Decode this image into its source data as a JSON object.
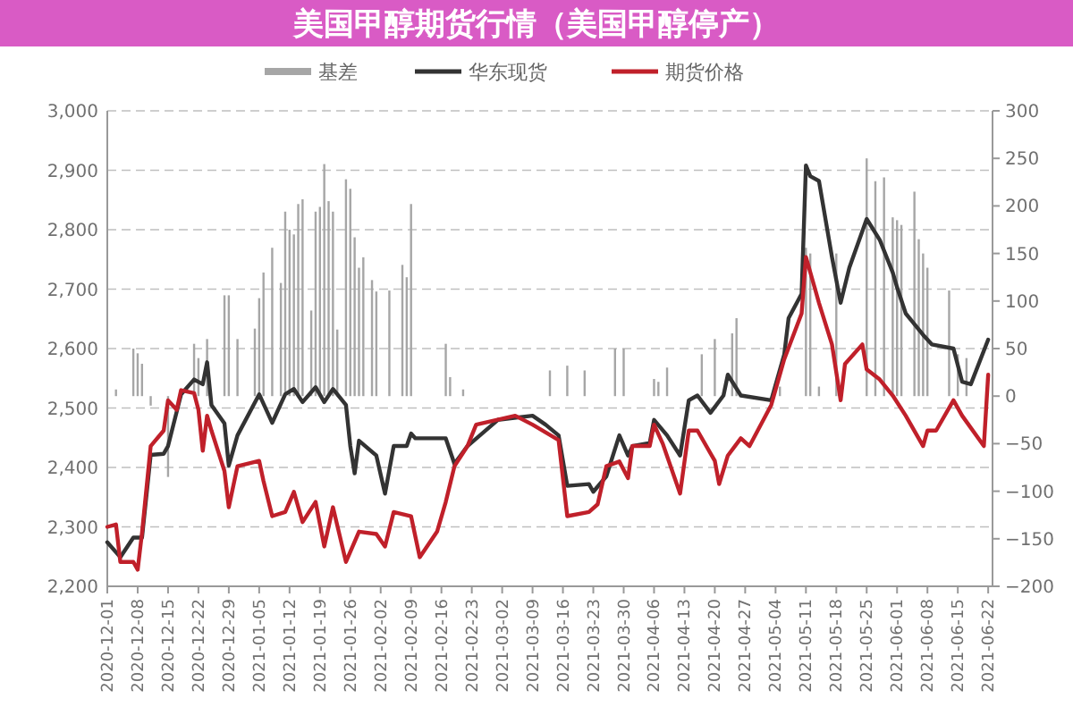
{
  "chart_data": {
    "type": "line",
    "title": "美国甲醇期货行情（美国甲醇停产）",
    "xlim": [
      "2020-12-01",
      "2021-06-23"
    ],
    "xticks": [
      {
        "value": "2020-12-01",
        "label": "2020-12-01"
      },
      {
        "value": "2020-12-08",
        "label": "2020-12-08"
      },
      {
        "value": "2020-12-15",
        "label": "2020-12-15"
      },
      {
        "value": "2020-12-22",
        "label": "2020-12-22"
      },
      {
        "value": "2020-12-29",
        "label": "2020-12-29"
      },
      {
        "value": "2021-01-05",
        "label": "2021-01-05"
      },
      {
        "value": "2021-01-12",
        "label": "2021-01-12"
      },
      {
        "value": "2021-01-19",
        "label": "2021-01-19"
      },
      {
        "value": "2021-01-26",
        "label": "2021-01-26"
      },
      {
        "value": "2021-02-02",
        "label": "2021-02-02"
      },
      {
        "value": "2021-02-09",
        "label": "2021-02-09"
      },
      {
        "value": "2021-02-16",
        "label": "2021-02-16"
      },
      {
        "value": "2021-02-23",
        "label": "2021-02-23"
      },
      {
        "value": "2021-03-02",
        "label": "2021-03-02"
      },
      {
        "value": "2021-03-09",
        "label": "2021-03-09"
      },
      {
        "value": "2021-03-16",
        "label": "2021-03-16"
      },
      {
        "value": "2021-03-23",
        "label": "2021-03-23"
      },
      {
        "value": "2021-03-30",
        "label": "2021-03-30"
      },
      {
        "value": "2021-04-06",
        "label": "2021-04-06"
      },
      {
        "value": "2021-04-13",
        "label": "2021-04-13"
      },
      {
        "value": "2021-04-20",
        "label": "2021-04-20"
      },
      {
        "value": "2021-04-27",
        "label": "2021-04-27"
      },
      {
        "value": "2021-05-04",
        "label": "2021-05-04"
      },
      {
        "value": "2021-05-11",
        "label": "2021-05-11"
      },
      {
        "value": "2021-05-18",
        "label": "2021-05-18"
      },
      {
        "value": "2021-05-25",
        "label": "2021-05-25"
      },
      {
        "value": "2021-06-01",
        "label": "2021-06-01"
      },
      {
        "value": "2021-06-08",
        "label": "2021-06-08"
      },
      {
        "value": "2021-06-15",
        "label": "2021-06-15"
      },
      {
        "value": "2021-06-22",
        "label": "2021-06-22"
      }
    ],
    "ylim": [
      2200,
      3000
    ],
    "yticks": [
      {
        "value": 2200,
        "label": "2,200"
      },
      {
        "value": 2300,
        "label": "2,300"
      },
      {
        "value": 2400,
        "label": "2,400"
      },
      {
        "value": 2500,
        "label": "2,500"
      },
      {
        "value": 2600,
        "label": "2,600"
      },
      {
        "value": 2700,
        "label": "2,700"
      },
      {
        "value": 2800,
        "label": "2,800"
      },
      {
        "value": 2900,
        "label": "2,900"
      },
      {
        "value": 3000,
        "label": "3,000"
      }
    ],
    "y2lim": [
      -200,
      300
    ],
    "y2ticks": [
      {
        "value": -200,
        "label": "−200"
      },
      {
        "value": -150,
        "label": "−150"
      },
      {
        "value": -100,
        "label": "−100"
      },
      {
        "value": -50,
        "label": "−50"
      },
      0,
      50,
      100,
      150,
      200,
      250,
      300
    ],
    "grid": "y",
    "legend": "top",
    "series": [
      {
        "name": "基差",
        "type": "bar",
        "axis": "y2",
        "color": "#a6a6a6",
        "x": [
          "2020-12-03",
          "2020-12-07",
          "2020-12-08",
          "2020-12-09",
          "2020-12-11",
          "2020-12-15",
          "2020-12-21",
          "2020-12-22",
          "2020-12-24",
          "2020-12-28",
          "2020-12-29",
          "2020-12-31",
          "2021-01-04",
          "2021-01-05",
          "2021-01-06",
          "2021-01-08",
          "2021-01-10",
          "2021-01-11",
          "2021-01-12",
          "2021-01-13",
          "2021-01-14",
          "2021-01-15",
          "2021-01-17",
          "2021-01-18",
          "2021-01-19",
          "2021-01-20",
          "2021-01-21",
          "2021-01-22",
          "2021-01-23",
          "2021-01-25",
          "2021-01-26",
          "2021-01-27",
          "2021-01-28",
          "2021-01-29",
          "2021-01-31",
          "2021-02-01",
          "2021-02-04",
          "2021-02-07",
          "2021-02-08",
          "2021-02-09",
          "2021-02-17",
          "2021-02-18",
          "2021-02-21",
          "2021-03-13",
          "2021-03-17",
          "2021-03-21",
          "2021-03-28",
          "2021-03-30",
          "2021-04-06",
          "2021-04-07",
          "2021-04-09",
          "2021-04-17",
          "2021-04-20",
          "2021-04-24",
          "2021-04-25",
          "2021-05-05",
          "2021-05-11",
          "2021-05-12",
          "2021-05-14",
          "2021-05-18",
          "2021-05-25",
          "2021-05-27",
          "2021-05-29",
          "2021-05-31",
          "2021-06-01",
          "2021-06-02",
          "2021-06-05",
          "2021-06-06",
          "2021-06-07",
          "2021-06-08",
          "2021-06-13",
          "2021-06-15",
          "2021-06-17"
        ],
        "values": [
          7,
          50,
          45,
          34,
          -10,
          -85,
          55,
          40,
          60,
          106,
          106,
          60,
          71,
          103,
          130,
          156,
          119,
          194,
          175,
          170,
          202,
          207,
          90,
          194,
          199,
          244,
          205,
          194,
          70,
          228,
          218,
          167,
          135,
          146,
          122,
          110,
          111,
          138,
          125,
          202,
          55,
          20,
          7,
          27,
          32,
          27,
          50,
          50,
          18,
          15,
          30,
          44,
          60,
          66,
          82,
          10,
          156,
          150,
          10,
          150,
          250,
          226,
          230,
          188,
          185,
          180,
          215,
          165,
          150,
          135,
          111,
          44,
          40
        ]
      },
      {
        "name": "华东现货",
        "type": "line",
        "color": "#333333",
        "x": [
          "2020-12-01",
          "2020-12-04",
          "2020-12-07",
          "2020-12-09",
          "2020-12-11",
          "2020-12-14",
          "2020-12-15",
          "2020-12-18",
          "2020-12-21",
          "2020-12-23",
          "2020-12-24",
          "2020-12-25",
          "2020-12-28",
          "2020-12-29",
          "2020-12-31",
          "2021-01-05",
          "2021-01-08",
          "2021-01-11",
          "2021-01-13",
          "2021-01-15",
          "2021-01-18",
          "2021-01-20",
          "2021-01-22",
          "2021-01-25",
          "2021-01-26",
          "2021-01-27",
          "2021-01-28",
          "2021-02-01",
          "2021-02-03",
          "2021-02-05",
          "2021-02-08",
          "2021-02-09",
          "2021-02-10",
          "2021-02-17",
          "2021-02-19",
          "2021-02-22",
          "2021-03-01",
          "2021-03-09",
          "2021-03-12",
          "2021-03-15",
          "2021-03-17",
          "2021-03-22",
          "2021-03-23",
          "2021-03-26",
          "2021-03-29",
          "2021-03-31",
          "2021-04-01",
          "2021-04-05",
          "2021-04-06",
          "2021-04-09",
          "2021-04-12",
          "2021-04-14",
          "2021-04-16",
          "2021-04-19",
          "2021-04-22",
          "2021-04-23",
          "2021-04-26",
          "2021-05-03",
          "2021-05-06",
          "2021-05-07",
          "2021-05-10",
          "2021-05-11",
          "2021-05-12",
          "2021-05-14",
          "2021-05-17",
          "2021-05-19",
          "2021-05-21",
          "2021-05-25",
          "2021-05-28",
          "2021-05-31",
          "2021-06-01",
          "2021-06-03",
          "2021-06-07",
          "2021-06-09",
          "2021-06-14",
          "2021-06-16",
          "2021-06-18",
          "2021-06-22"
        ],
        "values": [
          2274,
          2249,
          2282,
          2282,
          2421,
          2423,
          2436,
          2523,
          2548,
          2540,
          2577,
          2505,
          2474,
          2403,
          2454,
          2523,
          2475,
          2523,
          2532,
          2510,
          2535,
          2510,
          2532,
          2505,
          2436,
          2390,
          2445,
          2420,
          2356,
          2436,
          2436,
          2457,
          2449,
          2449,
          2406,
          2436,
          2480,
          2487,
          2472,
          2454,
          2369,
          2372,
          2359,
          2385,
          2454,
          2420,
          2436,
          2441,
          2480,
          2454,
          2420,
          2513,
          2521,
          2492,
          2521,
          2556,
          2521,
          2513,
          2590,
          2651,
          2692,
          2908,
          2890,
          2882,
          2754,
          2677,
          2736,
          2818,
          2783,
          2728,
          2703,
          2659,
          2623,
          2607,
          2600,
          2544,
          2540,
          2615
        ]
      },
      {
        "name": "期货价格",
        "type": "line",
        "color": "#c0202a",
        "x": [
          "2020-12-01",
          "2020-12-03",
          "2020-12-04",
          "2020-12-07",
          "2020-12-08",
          "2020-12-09",
          "2020-12-11",
          "2020-12-14",
          "2020-12-15",
          "2020-12-17",
          "2020-12-18",
          "2020-12-21",
          "2020-12-22",
          "2020-12-23",
          "2020-12-24",
          "2020-12-25",
          "2020-12-28",
          "2020-12-29",
          "2020-12-31",
          "2021-01-05",
          "2021-01-06",
          "2021-01-08",
          "2021-01-11",
          "2021-01-13",
          "2021-01-15",
          "2021-01-18",
          "2021-01-20",
          "2021-01-22",
          "2021-01-25",
          "2021-01-28",
          "2021-02-01",
          "2021-02-03",
          "2021-02-05",
          "2021-02-09",
          "2021-02-11",
          "2021-02-15",
          "2021-02-17",
          "2021-02-19",
          "2021-02-22",
          "2021-02-24",
          "2021-03-05",
          "2021-03-09",
          "2021-03-15",
          "2021-03-17",
          "2021-03-22",
          "2021-03-24",
          "2021-03-26",
          "2021-03-29",
          "2021-03-31",
          "2021-04-01",
          "2021-04-05",
          "2021-04-06",
          "2021-04-08",
          "2021-04-12",
          "2021-04-14",
          "2021-04-16",
          "2021-04-20",
          "2021-04-21",
          "2021-04-23",
          "2021-04-26",
          "2021-04-28",
          "2021-05-03",
          "2021-05-06",
          "2021-05-10",
          "2021-05-11",
          "2021-05-13",
          "2021-05-14",
          "2021-05-17",
          "2021-05-19",
          "2021-05-20",
          "2021-05-24",
          "2021-05-25",
          "2021-05-28",
          "2021-05-31",
          "2021-06-03",
          "2021-06-07",
          "2021-06-08",
          "2021-06-10",
          "2021-06-14",
          "2021-06-16",
          "2021-06-21",
          "2021-06-22"
        ],
        "values": [
          2300,
          2304,
          2241,
          2241,
          2228,
          2290,
          2436,
          2462,
          2513,
          2497,
          2530,
          2525,
          2497,
          2428,
          2487,
          2462,
          2394,
          2333,
          2402,
          2411,
          2377,
          2318,
          2325,
          2359,
          2308,
          2342,
          2267,
          2333,
          2241,
          2292,
          2288,
          2267,
          2325,
          2318,
          2249,
          2292,
          2342,
          2402,
          2436,
          2472,
          2487,
          2472,
          2446,
          2318,
          2325,
          2338,
          2402,
          2410,
          2382,
          2436,
          2436,
          2472,
          2440,
          2356,
          2462,
          2462,
          2411,
          2372,
          2420,
          2449,
          2436,
          2505,
          2582,
          2659,
          2754,
          2703,
          2677,
          2607,
          2513,
          2574,
          2607,
          2565,
          2548,
          2521,
          2487,
          2436,
          2462,
          2462,
          2513,
          2487,
          2436,
          2556
        ]
      }
    ]
  }
}
